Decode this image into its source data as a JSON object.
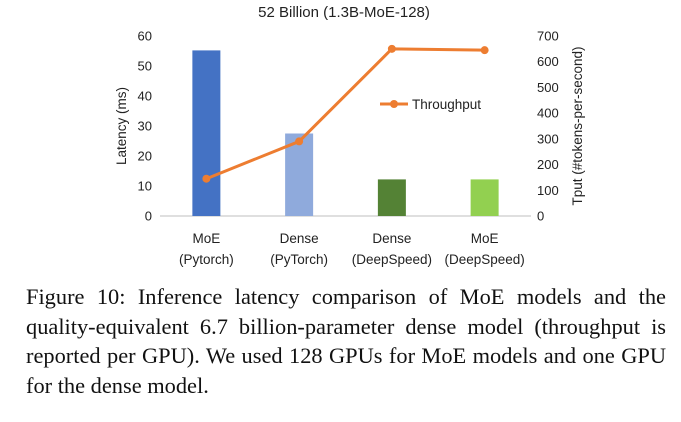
{
  "chart_data": {
    "type": "bar+line",
    "title": "52 Billion (1.3B-MoE-128)",
    "categories": [
      [
        "MoE",
        "(Pytorch)"
      ],
      [
        "Dense",
        "(PyTorch)"
      ],
      [
        "Dense",
        "(DeepSpeed)"
      ],
      [
        "MoE",
        "(DeepSpeed)"
      ]
    ],
    "bar_series": {
      "axis": "left",
      "values": [
        55.2,
        27.5,
        12.2,
        12.2
      ],
      "colors": [
        "#4472c4",
        "#8faadc",
        "#548235",
        "#92d050"
      ]
    },
    "line_series": {
      "name": "Throughput",
      "axis": "right",
      "values": [
        145,
        290,
        650,
        645
      ],
      "color": "#ed7d31"
    },
    "ylabel_left": "Latency (ms)",
    "ylim_left": [
      0,
      60
    ],
    "yticks_left": [
      0,
      10,
      20,
      30,
      40,
      50,
      60
    ],
    "ylabel_right": "Tput (#tokens-per-second)",
    "ylim_right": [
      0,
      700
    ],
    "yticks_right": [
      0,
      100,
      200,
      300,
      400,
      500,
      600,
      700
    ],
    "grid": false,
    "legend_placement": "right, mid-height"
  },
  "caption": {
    "text": "Figure 10: Inference latency comparison of MoE models and the quality-equivalent 6.7 billion-parameter dense model (throughput is reported per GPU). We used 128 GPUs for MoE models and one GPU for the dense model."
  }
}
